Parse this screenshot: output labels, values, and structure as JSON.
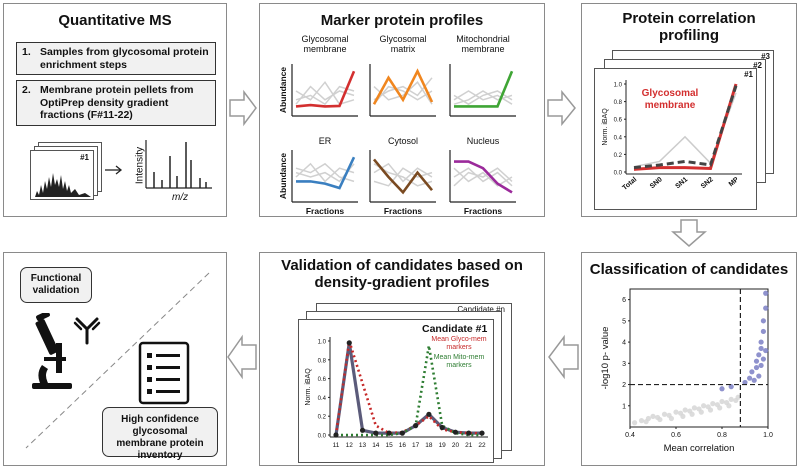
{
  "panels": {
    "ms": {
      "title": "Quantitative MS",
      "step1_num": "1.",
      "step1_text": "Samples from glycosomal protein enrichment steps",
      "step2_num": "2.",
      "step2_text": "Membrane protein pellets from OptiPrep density gradient fractions (F#11-22)",
      "stack_label": "#1",
      "ylabel": "Intensity",
      "xlabel": "m/z"
    },
    "marker": {
      "title": "Marker protein profiles",
      "ylabel": "Abundance",
      "xlabel": "Fractions",
      "subplots": [
        {
          "name": "Glycosomal membrane",
          "color": "#d32f2f"
        },
        {
          "name": "Glycosomal matrix",
          "color": "#f0861f"
        },
        {
          "name": "Mitochondrial membrane",
          "color": "#3fa535"
        },
        {
          "name": "ER",
          "color": "#3a7fc0"
        },
        {
          "name": "Cytosol",
          "color": "#7a4a21"
        },
        {
          "name": "Nucleus",
          "color": "#9b2a9b"
        }
      ]
    },
    "correlation": {
      "title": "Protein correlation profiling",
      "sheet_labels": [
        "#3",
        "#2",
        "#1"
      ],
      "series_label": "Glycosomal membrane",
      "ylabel": "Norm. iBAQ",
      "yticks": [
        "0.0",
        "0.2",
        "0.4",
        "0.6",
        "0.8",
        "1.0"
      ],
      "xticks": [
        "Total",
        "SN0",
        "SN1",
        "SN2",
        "MP"
      ]
    },
    "classification": {
      "title": "Classification of candidates",
      "ylabel": "-log10  p- value",
      "xlabel": "Mean correlation",
      "yticks": [
        "1",
        "2",
        "3",
        "4",
        "5",
        "6"
      ],
      "xticks": [
        "0.4",
        "0.6",
        "0.8",
        "1.0"
      ]
    },
    "validation": {
      "title": "Validation of candidates based on density-gradient profiles",
      "back_label": "Candidate #n",
      "candidate_label": "Candidate #1",
      "legend1": "Mean Glyco-mem markers",
      "legend2": "Mean Mito-mem markers",
      "ylabel": "Norm. iBAQ",
      "yticks": [
        "0.0",
        "0.2",
        "0.4",
        "0.6",
        "0.8",
        "1.0"
      ],
      "xticks": [
        "11",
        "12",
        "13",
        "14",
        "15",
        "16",
        "17",
        "18",
        "19",
        "20",
        "21",
        "22"
      ]
    },
    "functional": {
      "label": "Functional validation",
      "inventory_label": "High confidence glycosomal membrane protein inventory"
    }
  },
  "chart_data": [
    {
      "type": "line",
      "title": "Glycosomal membrane",
      "x": [
        "Total",
        "SN0",
        "SN1",
        "SN2",
        "MP"
      ],
      "ylabel": "Norm. iBAQ",
      "ylim": [
        0,
        1
      ],
      "series": [
        {
          "name": "Glycosomal membrane",
          "values": [
            0.03,
            0.05,
            0.05,
            0.04,
            1.0
          ],
          "color": "#d32f2f"
        },
        {
          "values": [
            0.05,
            0.08,
            0.12,
            0.08,
            0.98
          ],
          "color": "#444444",
          "style": "dashed"
        },
        {
          "values": [
            0.06,
            0.12,
            0.4,
            0.1,
            0.9
          ],
          "color": "#cccccc"
        }
      ]
    },
    {
      "type": "scatter",
      "xlabel": "Mean correlation",
      "ylabel": "-log10  p- value",
      "xlim": [
        0.4,
        1.0
      ],
      "ylim": [
        0,
        6.5
      ],
      "threshold_x": 0.88,
      "threshold_y": 2.0,
      "series": [
        {
          "color": "#d6d6d6",
          "points": [
            [
              0.42,
              0.2
            ],
            [
              0.45,
              0.3
            ],
            [
              0.48,
              0.4
            ],
            [
              0.5,
              0.5
            ],
            [
              0.52,
              0.45
            ],
            [
              0.55,
              0.6
            ],
            [
              0.57,
              0.55
            ],
            [
              0.6,
              0.7
            ],
            [
              0.62,
              0.65
            ],
            [
              0.64,
              0.8
            ],
            [
              0.66,
              0.75
            ],
            [
              0.68,
              0.9
            ],
            [
              0.7,
              0.85
            ],
            [
              0.72,
              1.0
            ],
            [
              0.74,
              0.95
            ],
            [
              0.76,
              1.1
            ],
            [
              0.78,
              1.05
            ],
            [
              0.8,
              1.2
            ],
            [
              0.82,
              1.15
            ],
            [
              0.84,
              1.3
            ],
            [
              0.86,
              1.25
            ],
            [
              0.47,
              0.25
            ],
            [
              0.53,
              0.35
            ],
            [
              0.58,
              0.4
            ],
            [
              0.63,
              0.5
            ],
            [
              0.67,
              0.6
            ],
            [
              0.71,
              0.7
            ],
            [
              0.75,
              0.8
            ],
            [
              0.79,
              0.9
            ],
            [
              0.83,
              1.0
            ],
            [
              0.87,
              1.4
            ]
          ]
        },
        {
          "color": "#7b7fc4",
          "points": [
            [
              0.9,
              2.1
            ],
            [
              0.92,
              2.3
            ],
            [
              0.93,
              2.6
            ],
            [
              0.94,
              2.2
            ],
            [
              0.95,
              2.8
            ],
            [
              0.95,
              3.1
            ],
            [
              0.96,
              2.4
            ],
            [
              0.96,
              3.4
            ],
            [
              0.97,
              2.9
            ],
            [
              0.97,
              3.7
            ],
            [
              0.97,
              4.0
            ],
            [
              0.98,
              3.2
            ],
            [
              0.98,
              4.5
            ],
            [
              0.98,
              5.0
            ],
            [
              0.99,
              3.6
            ],
            [
              0.99,
              5.6
            ],
            [
              0.99,
              6.3
            ],
            [
              0.84,
              1.9
            ],
            [
              0.8,
              1.8
            ]
          ]
        }
      ]
    },
    {
      "type": "line",
      "title": "Candidate #1",
      "x": [
        "11",
        "12",
        "13",
        "14",
        "15",
        "16",
        "17",
        "18",
        "19",
        "20",
        "21",
        "22"
      ],
      "ylabel": "Norm. iBAQ",
      "ylim": [
        0,
        1
      ],
      "series": [
        {
          "values": [
            0.0,
            0.98,
            0.05,
            0.02,
            0.02,
            0.02,
            0.1,
            0.22,
            0.08,
            0.03,
            0.02,
            0.02
          ],
          "color": "#333333"
        },
        {
          "name": "Mean Glyco-mem markers",
          "values": [
            0.0,
            1.0,
            0.55,
            0.1,
            0.02,
            0.03,
            0.1,
            0.2,
            0.06,
            0.03,
            0.02,
            0.02
          ],
          "color": "#c62828",
          "style": "dotted"
        },
        {
          "name": "Mean Mito-mem markers",
          "values": [
            0.0,
            0.0,
            0.0,
            0.0,
            0.0,
            0.02,
            0.1,
            0.95,
            0.1,
            0.02,
            0.0,
            0.0
          ],
          "color": "#2e7d32",
          "style": "dotted"
        }
      ]
    }
  ]
}
